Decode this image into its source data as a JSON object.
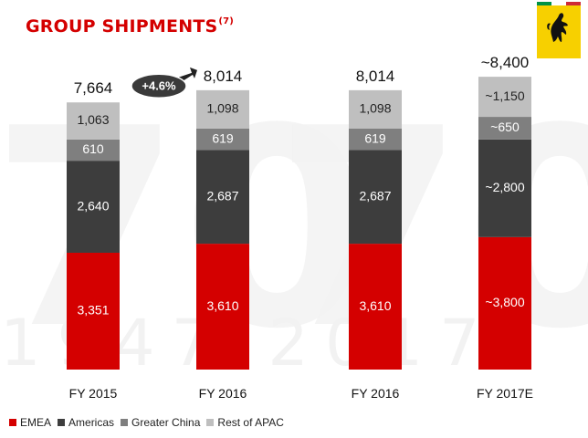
{
  "page": {
    "title": "GROUP SHIPMENTS",
    "title_note": "(7)"
  },
  "colors": {
    "emea": "#d40000",
    "americas": "#3d3d3d",
    "greater_china": "#7f7f7f",
    "rest_of_apac": "#bfbfbf",
    "accent": "#d40000",
    "logo_background": "#f7d000"
  },
  "logo": {
    "text": "Ferrari",
    "icon": "prancing-horse-icon"
  },
  "watermark": {
    "text": "70  1947 - 2017"
  },
  "chart_data": {
    "type": "bar",
    "stacked": true,
    "categories": [
      "FY 2015",
      "FY 2016",
      "FY 2016",
      "FY 2017E"
    ],
    "series": [
      {
        "name": "EMEA",
        "values": [
          3351,
          3610,
          3610,
          3800
        ],
        "labels": [
          "3,351",
          "3,610",
          "3,610",
          "~3,800"
        ]
      },
      {
        "name": "Americas",
        "values": [
          2640,
          2687,
          2687,
          2800
        ],
        "labels": [
          "2,640",
          "2,687",
          "2,687",
          "~2,800"
        ]
      },
      {
        "name": "Greater China",
        "values": [
          610,
          619,
          619,
          650
        ],
        "labels": [
          "610",
          "619",
          "619",
          "~650"
        ]
      },
      {
        "name": "Rest of APAC",
        "values": [
          1063,
          1098,
          1098,
          1150
        ],
        "labels": [
          "1,063",
          "1,098",
          "1,098",
          "~1,150"
        ]
      }
    ],
    "totals": [
      7664,
      8014,
      8014,
      8400
    ],
    "total_labels": [
      "7,664",
      "8,014",
      "8,014",
      "~8,400"
    ],
    "growth_callout": {
      "text": "+4.6%",
      "from": "FY 2015",
      "to": "FY 2016"
    },
    "ylim": [
      0,
      9000
    ],
    "legend_position": "bottom-left",
    "grid": false
  }
}
